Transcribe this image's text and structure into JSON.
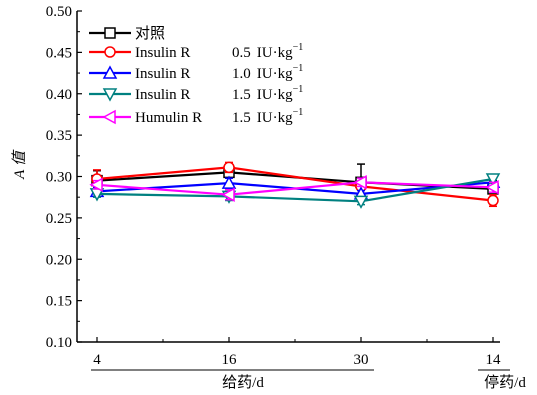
{
  "chart_data": {
    "type": "line",
    "ylabel": "A 值",
    "ylim": [
      0.1,
      0.5
    ],
    "yticks": [
      "0.10",
      "0.15",
      "0.20",
      "0.25",
      "0.30",
      "0.35",
      "0.40",
      "0.45",
      "0.50"
    ],
    "x_tick_labels": [
      "4",
      "16",
      "30",
      "14"
    ],
    "x_group_labels": [
      "给药/d",
      "停药/d"
    ],
    "legend_position": "top-left",
    "grid": false,
    "series": [
      {
        "name": "对照",
        "label_main": "对照",
        "label_dose": "",
        "label_unit": "",
        "label_sup": "",
        "color": "#000000",
        "marker": "square",
        "values": [
          0.295,
          0.305,
          0.293,
          0.285
        ],
        "errors": [
          0.012,
          0.007,
          0.022,
          0.01
        ]
      },
      {
        "name": "Insulin R 0.5 IU·kg-1",
        "label_main": "Insulin R",
        "label_dose": "0.5",
        "label_unit": "IU·kg",
        "label_sup": "−1",
        "color": "#ff0000",
        "marker": "circle",
        "values": [
          0.297,
          0.311,
          0.288,
          0.271
        ],
        "errors": [
          0.011,
          0.006,
          0.005,
          0.007
        ]
      },
      {
        "name": "Insulin R 1.0 IU·kg-1",
        "label_main": "Insulin R",
        "label_dose": "1.0",
        "label_unit": "IU·kg",
        "label_sup": "−1",
        "color": "#0000ff",
        "marker": "triangle-up",
        "values": [
          0.282,
          0.292,
          0.279,
          0.293
        ],
        "errors": [
          0.005,
          0.006,
          0.004,
          0.006
        ]
      },
      {
        "name": "Insulin R 1.5 IU·kg-1",
        "label_main": "Insulin R",
        "label_dose": "1.5",
        "label_unit": "IU·kg",
        "label_sup": "−1",
        "color": "#008080",
        "marker": "triangle-down",
        "values": [
          0.279,
          0.276,
          0.27,
          0.297
        ],
        "errors": [
          0.004,
          0.005,
          0.004,
          0.005
        ]
      },
      {
        "name": "Humulin R 1.5 IU·kg-1",
        "label_main": "Humulin R",
        "label_dose": "1.5",
        "label_unit": "IU·kg",
        "label_sup": "−1",
        "color": "#ff00ff",
        "marker": "triangle-left",
        "values": [
          0.29,
          0.278,
          0.293,
          0.287
        ],
        "errors": [
          0.005,
          0.006,
          0.005,
          0.006
        ]
      }
    ]
  }
}
